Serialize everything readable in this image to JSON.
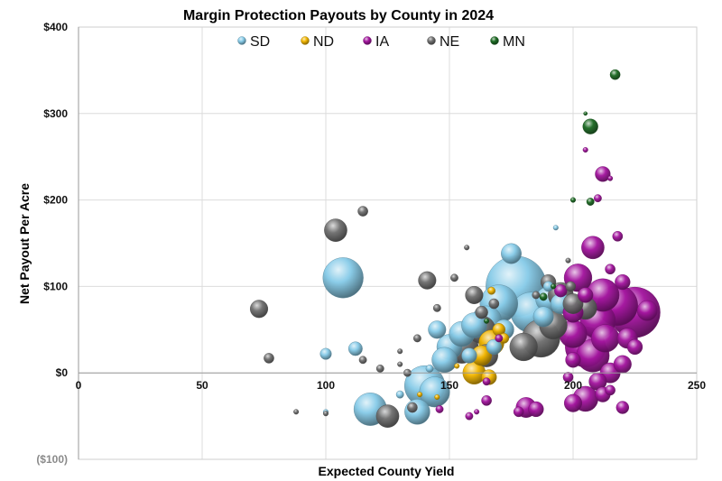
{
  "chart_data": {
    "type": "scatter",
    "title": "Margin Protection Payouts by County in 2024",
    "xlabel": "Expected County Yield",
    "ylabel": "Net Payout Per Acre",
    "xlim": [
      0,
      250
    ],
    "ylim": [
      -100,
      400
    ],
    "x_ticks": [
      0,
      50,
      100,
      150,
      200,
      250
    ],
    "y_ticks": [
      -100,
      0,
      100,
      200,
      300,
      400
    ],
    "y_tick_labels": [
      "($100)",
      "$0",
      "$100",
      "$200",
      "$300",
      "$400"
    ],
    "legend": {
      "placement": "top",
      "labels": [
        "SD",
        "ND",
        "IA",
        "NE",
        "MN"
      ]
    },
    "series_colors": {
      "SD": "#87cbe8",
      "ND": "#f2b600",
      "IA": "#a4169f",
      "NE": "#707070",
      "MN": "#1d6b24"
    },
    "series": [
      {
        "name": "SD",
        "points": [
          [
            107,
            110,
            1.6
          ],
          [
            100,
            22,
            0.45
          ],
          [
            112,
            28,
            0.55
          ],
          [
            118,
            -42,
            1.3
          ],
          [
            140,
            -15,
            1.6
          ],
          [
            137,
            -45,
            1.0
          ],
          [
            144,
            -22,
            1.2
          ],
          [
            145,
            50,
            0.7
          ],
          [
            150,
            30,
            1.0
          ],
          [
            155,
            45,
            1.0
          ],
          [
            165,
            60,
            1.2
          ],
          [
            170,
            80,
            1.5
          ],
          [
            177,
            100,
            2.4
          ],
          [
            183,
            70,
            1.6
          ],
          [
            175,
            138,
            0.8
          ],
          [
            190,
            85,
            1.0
          ],
          [
            195,
            80,
            0.8
          ],
          [
            160,
            55,
            1.0
          ],
          [
            148,
            15,
            1.0
          ],
          [
            100,
            -45,
            0.2
          ],
          [
            158,
            20,
            0.6
          ],
          [
            168,
            30,
            0.6
          ],
          [
            172,
            50,
            0.8
          ],
          [
            188,
            65,
            0.8
          ],
          [
            193,
            168,
            0.2
          ],
          [
            142,
            5,
            0.3
          ],
          [
            130,
            -25,
            0.3
          ],
          [
            190,
            100,
            0.4
          ]
        ]
      },
      {
        "name": "ND",
        "points": [
          [
            160,
            0,
            0.9
          ],
          [
            163,
            20,
            0.8
          ],
          [
            167,
            35,
            1.0
          ],
          [
            166,
            -5,
            0.6
          ],
          [
            167,
            95,
            0.3
          ],
          [
            170,
            50,
            0.5
          ],
          [
            138,
            -25,
            0.2
          ],
          [
            145,
            -28,
            0.2
          ],
          [
            153,
            8,
            0.2
          ],
          [
            172,
            40,
            0.4
          ]
        ]
      },
      {
        "name": "IA",
        "points": [
          [
            225,
            70,
            2.0
          ],
          [
            218,
            78,
            1.6
          ],
          [
            212,
            90,
            1.3
          ],
          [
            210,
            60,
            1.4
          ],
          [
            213,
            40,
            1.1
          ],
          [
            208,
            20,
            1.3
          ],
          [
            205,
            30,
            1.6
          ],
          [
            200,
            45,
            1.1
          ],
          [
            202,
            110,
            1.1
          ],
          [
            208,
            145,
            0.9
          ],
          [
            212,
            230,
            0.6
          ],
          [
            218,
            158,
            0.4
          ],
          [
            215,
            120,
            0.4
          ],
          [
            220,
            105,
            0.6
          ],
          [
            230,
            72,
            0.8
          ],
          [
            222,
            40,
            0.8
          ],
          [
            220,
            10,
            0.7
          ],
          [
            215,
            0,
            0.8
          ],
          [
            210,
            -10,
            0.7
          ],
          [
            205,
            -30,
            1.0
          ],
          [
            200,
            -35,
            0.7
          ],
          [
            212,
            -25,
            0.6
          ],
          [
            220,
            -40,
            0.5
          ],
          [
            215,
            -20,
            0.4
          ],
          [
            181,
            -40,
            0.8
          ],
          [
            185,
            -42,
            0.6
          ],
          [
            178,
            -45,
            0.4
          ],
          [
            165,
            -32,
            0.4
          ],
          [
            158,
            -50,
            0.3
          ],
          [
            146,
            -42,
            0.3
          ],
          [
            210,
            202,
            0.3
          ],
          [
            205,
            258,
            0.2
          ],
          [
            200,
            15,
            0.6
          ],
          [
            198,
            -5,
            0.4
          ],
          [
            215,
            225,
            0.2
          ],
          [
            225,
            30,
            0.6
          ],
          [
            200,
            70,
            0.8
          ],
          [
            195,
            95,
            0.5
          ],
          [
            205,
            90,
            0.6
          ],
          [
            170,
            40,
            0.3
          ],
          [
            165,
            -10,
            0.3
          ],
          [
            161,
            -45,
            0.2
          ]
        ]
      },
      {
        "name": "NE",
        "points": [
          [
            104,
            165,
            0.9
          ],
          [
            73,
            74,
            0.7
          ],
          [
            77,
            17,
            0.4
          ],
          [
            115,
            187,
            0.4
          ],
          [
            141,
            107,
            0.7
          ],
          [
            155,
            30,
            1.3
          ],
          [
            163,
            50,
            1.1
          ],
          [
            165,
            20,
            0.9
          ],
          [
            180,
            30,
            1.1
          ],
          [
            187,
            40,
            1.5
          ],
          [
            192,
            55,
            1.1
          ],
          [
            195,
            90,
            1.0
          ],
          [
            200,
            80,
            0.8
          ],
          [
            205,
            75,
            0.9
          ],
          [
            190,
            105,
            0.6
          ],
          [
            160,
            90,
            0.7
          ],
          [
            163,
            70,
            0.5
          ],
          [
            168,
            80,
            0.4
          ],
          [
            125,
            -50,
            0.9
          ],
          [
            135,
            -40,
            0.4
          ],
          [
            137,
            40,
            0.3
          ],
          [
            130,
            25,
            0.2
          ],
          [
            122,
            5,
            0.3
          ],
          [
            115,
            15,
            0.3
          ],
          [
            199,
            100,
            0.4
          ],
          [
            198,
            130,
            0.2
          ],
          [
            145,
            75,
            0.3
          ],
          [
            152,
            110,
            0.3
          ],
          [
            157,
            145,
            0.2
          ],
          [
            185,
            90,
            0.3
          ],
          [
            88,
            -45,
            0.2
          ],
          [
            100,
            -47,
            0.2
          ],
          [
            133,
            0,
            0.3
          ],
          [
            130,
            10,
            0.2
          ]
        ]
      },
      {
        "name": "MN",
        "points": [
          [
            217,
            345,
            0.4
          ],
          [
            207,
            285,
            0.6
          ],
          [
            207,
            198,
            0.3
          ],
          [
            200,
            200,
            0.2
          ],
          [
            188,
            88,
            0.3
          ],
          [
            192,
            100,
            0.2
          ],
          [
            165,
            60,
            0.2
          ],
          [
            205,
            300,
            0.15
          ]
        ]
      }
    ]
  }
}
